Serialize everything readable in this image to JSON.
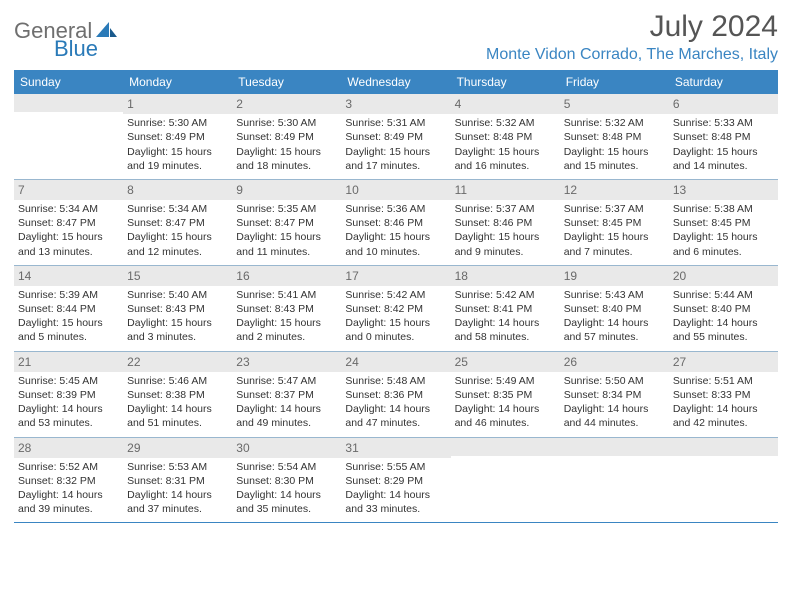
{
  "brand": {
    "name1": "General",
    "name2": "Blue"
  },
  "header": {
    "month_title": "July 2024",
    "location": "Monte Vidon Corrado, The Marches, Italy"
  },
  "colors": {
    "header_bg": "#3a85c2",
    "header_text": "#ffffff",
    "daynum_bg": "#e9e9e9",
    "daynum_text": "#6a6a6a",
    "body_text": "#333333",
    "location_text": "#3a85c2",
    "title_text": "#555555",
    "logo_gray": "#6f6f6f",
    "logo_blue": "#2a7ab8",
    "rule": "#3a85c2"
  },
  "dow": [
    "Sunday",
    "Monday",
    "Tuesday",
    "Wednesday",
    "Thursday",
    "Friday",
    "Saturday"
  ],
  "weeks": [
    [
      {
        "n": "",
        "sr": "",
        "ss": "",
        "dl": ""
      },
      {
        "n": "1",
        "sr": "Sunrise: 5:30 AM",
        "ss": "Sunset: 8:49 PM",
        "dl": "Daylight: 15 hours and 19 minutes."
      },
      {
        "n": "2",
        "sr": "Sunrise: 5:30 AM",
        "ss": "Sunset: 8:49 PM",
        "dl": "Daylight: 15 hours and 18 minutes."
      },
      {
        "n": "3",
        "sr": "Sunrise: 5:31 AM",
        "ss": "Sunset: 8:49 PM",
        "dl": "Daylight: 15 hours and 17 minutes."
      },
      {
        "n": "4",
        "sr": "Sunrise: 5:32 AM",
        "ss": "Sunset: 8:48 PM",
        "dl": "Daylight: 15 hours and 16 minutes."
      },
      {
        "n": "5",
        "sr": "Sunrise: 5:32 AM",
        "ss": "Sunset: 8:48 PM",
        "dl": "Daylight: 15 hours and 15 minutes."
      },
      {
        "n": "6",
        "sr": "Sunrise: 5:33 AM",
        "ss": "Sunset: 8:48 PM",
        "dl": "Daylight: 15 hours and 14 minutes."
      }
    ],
    [
      {
        "n": "7",
        "sr": "Sunrise: 5:34 AM",
        "ss": "Sunset: 8:47 PM",
        "dl": "Daylight: 15 hours and 13 minutes."
      },
      {
        "n": "8",
        "sr": "Sunrise: 5:34 AM",
        "ss": "Sunset: 8:47 PM",
        "dl": "Daylight: 15 hours and 12 minutes."
      },
      {
        "n": "9",
        "sr": "Sunrise: 5:35 AM",
        "ss": "Sunset: 8:47 PM",
        "dl": "Daylight: 15 hours and 11 minutes."
      },
      {
        "n": "10",
        "sr": "Sunrise: 5:36 AM",
        "ss": "Sunset: 8:46 PM",
        "dl": "Daylight: 15 hours and 10 minutes."
      },
      {
        "n": "11",
        "sr": "Sunrise: 5:37 AM",
        "ss": "Sunset: 8:46 PM",
        "dl": "Daylight: 15 hours and 9 minutes."
      },
      {
        "n": "12",
        "sr": "Sunrise: 5:37 AM",
        "ss": "Sunset: 8:45 PM",
        "dl": "Daylight: 15 hours and 7 minutes."
      },
      {
        "n": "13",
        "sr": "Sunrise: 5:38 AM",
        "ss": "Sunset: 8:45 PM",
        "dl": "Daylight: 15 hours and 6 minutes."
      }
    ],
    [
      {
        "n": "14",
        "sr": "Sunrise: 5:39 AM",
        "ss": "Sunset: 8:44 PM",
        "dl": "Daylight: 15 hours and 5 minutes."
      },
      {
        "n": "15",
        "sr": "Sunrise: 5:40 AM",
        "ss": "Sunset: 8:43 PM",
        "dl": "Daylight: 15 hours and 3 minutes."
      },
      {
        "n": "16",
        "sr": "Sunrise: 5:41 AM",
        "ss": "Sunset: 8:43 PM",
        "dl": "Daylight: 15 hours and 2 minutes."
      },
      {
        "n": "17",
        "sr": "Sunrise: 5:42 AM",
        "ss": "Sunset: 8:42 PM",
        "dl": "Daylight: 15 hours and 0 minutes."
      },
      {
        "n": "18",
        "sr": "Sunrise: 5:42 AM",
        "ss": "Sunset: 8:41 PM",
        "dl": "Daylight: 14 hours and 58 minutes."
      },
      {
        "n": "19",
        "sr": "Sunrise: 5:43 AM",
        "ss": "Sunset: 8:40 PM",
        "dl": "Daylight: 14 hours and 57 minutes."
      },
      {
        "n": "20",
        "sr": "Sunrise: 5:44 AM",
        "ss": "Sunset: 8:40 PM",
        "dl": "Daylight: 14 hours and 55 minutes."
      }
    ],
    [
      {
        "n": "21",
        "sr": "Sunrise: 5:45 AM",
        "ss": "Sunset: 8:39 PM",
        "dl": "Daylight: 14 hours and 53 minutes."
      },
      {
        "n": "22",
        "sr": "Sunrise: 5:46 AM",
        "ss": "Sunset: 8:38 PM",
        "dl": "Daylight: 14 hours and 51 minutes."
      },
      {
        "n": "23",
        "sr": "Sunrise: 5:47 AM",
        "ss": "Sunset: 8:37 PM",
        "dl": "Daylight: 14 hours and 49 minutes."
      },
      {
        "n": "24",
        "sr": "Sunrise: 5:48 AM",
        "ss": "Sunset: 8:36 PM",
        "dl": "Daylight: 14 hours and 47 minutes."
      },
      {
        "n": "25",
        "sr": "Sunrise: 5:49 AM",
        "ss": "Sunset: 8:35 PM",
        "dl": "Daylight: 14 hours and 46 minutes."
      },
      {
        "n": "26",
        "sr": "Sunrise: 5:50 AM",
        "ss": "Sunset: 8:34 PM",
        "dl": "Daylight: 14 hours and 44 minutes."
      },
      {
        "n": "27",
        "sr": "Sunrise: 5:51 AM",
        "ss": "Sunset: 8:33 PM",
        "dl": "Daylight: 14 hours and 42 minutes."
      }
    ],
    [
      {
        "n": "28",
        "sr": "Sunrise: 5:52 AM",
        "ss": "Sunset: 8:32 PM",
        "dl": "Daylight: 14 hours and 39 minutes."
      },
      {
        "n": "29",
        "sr": "Sunrise: 5:53 AM",
        "ss": "Sunset: 8:31 PM",
        "dl": "Daylight: 14 hours and 37 minutes."
      },
      {
        "n": "30",
        "sr": "Sunrise: 5:54 AM",
        "ss": "Sunset: 8:30 PM",
        "dl": "Daylight: 14 hours and 35 minutes."
      },
      {
        "n": "31",
        "sr": "Sunrise: 5:55 AM",
        "ss": "Sunset: 8:29 PM",
        "dl": "Daylight: 14 hours and 33 minutes."
      },
      {
        "n": "",
        "sr": "",
        "ss": "",
        "dl": ""
      },
      {
        "n": "",
        "sr": "",
        "ss": "",
        "dl": ""
      },
      {
        "n": "",
        "sr": "",
        "ss": "",
        "dl": ""
      }
    ]
  ]
}
